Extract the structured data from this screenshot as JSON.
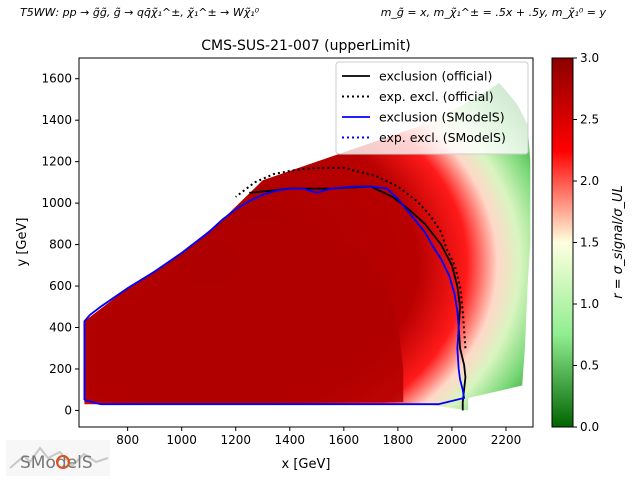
{
  "header": {
    "process": "T5WW: pp → g̃g̃, g̃ → qq̄χ̃₁^±, χ̃₁^± → Wχ̃₁⁰",
    "masses": "m_g̃ = x, m_χ̃₁^± = .5x + .5y, m_χ̃₁⁰ = y"
  },
  "logo": {
    "text": "SModelS"
  },
  "chart_data": {
    "type": "heatmap",
    "title": "CMS-SUS-21-007 (upperLimit)",
    "xlabel": "x [GeV]",
    "ylabel": "y [GeV]",
    "xlim": [
      620,
      2300
    ],
    "ylim": [
      -80,
      1700
    ],
    "xticks": [
      800,
      1000,
      1200,
      1400,
      1600,
      1800,
      2000,
      2200
    ],
    "yticks": [
      0,
      200,
      400,
      600,
      800,
      1000,
      1200,
      1400,
      1600
    ],
    "grid": false,
    "legend_position": "top-right",
    "colorbar": {
      "label": "r = σ_signal/σ_UL",
      "range": [
        0,
        3
      ],
      "ticks": [
        "0.0",
        "0.5",
        "1.0",
        "1.5",
        "2.0",
        "2.5",
        "3.0"
      ],
      "colors": [
        "#006400",
        "#90ee90",
        "#ffffe0",
        "#ff0000",
        "#8b0000"
      ]
    },
    "series": [
      {
        "name": "exclusion (official)",
        "style": "solid",
        "color": "#000000",
        "points": [
          [
            2040,
            0
          ],
          [
            2040,
            40
          ],
          [
            2045,
            100
          ],
          [
            2050,
            160
          ],
          [
            2045,
            220
          ],
          [
            2030,
            300
          ],
          [
            2025,
            400
          ],
          [
            2030,
            500
          ],
          [
            2020,
            600
          ],
          [
            2000,
            700
          ],
          [
            1960,
            800
          ],
          [
            1900,
            900
          ],
          [
            1840,
            970
          ],
          [
            1780,
            1030
          ],
          [
            1700,
            1080
          ],
          [
            1550,
            1070
          ],
          [
            1400,
            1070
          ],
          [
            1330,
            1060
          ],
          [
            1250,
            1050
          ]
        ]
      },
      {
        "name": "exp. excl. (official)",
        "style": "dotted",
        "color": "#000000",
        "points": [
          [
            2050,
            300
          ],
          [
            2040,
            480
          ],
          [
            2030,
            600
          ],
          [
            2010,
            700
          ],
          [
            1980,
            780
          ],
          [
            1960,
            860
          ],
          [
            1920,
            940
          ],
          [
            1870,
            1010
          ],
          [
            1800,
            1080
          ],
          [
            1720,
            1130
          ],
          [
            1600,
            1170
          ],
          [
            1500,
            1170
          ],
          [
            1420,
            1160
          ],
          [
            1340,
            1140
          ],
          [
            1270,
            1100
          ],
          [
            1200,
            1030
          ]
        ]
      },
      {
        "name": "exclusion (SModelS)",
        "style": "solid",
        "color": "#0000ff",
        "points": [
          [
            640,
            50
          ],
          [
            640,
            430
          ],
          [
            660,
            460
          ],
          [
            700,
            500
          ],
          [
            800,
            590
          ],
          [
            900,
            670
          ],
          [
            1000,
            760
          ],
          [
            1100,
            860
          ],
          [
            1150,
            920
          ],
          [
            1200,
            970
          ],
          [
            1250,
            1010
          ],
          [
            1300,
            1040
          ],
          [
            1350,
            1060
          ],
          [
            1400,
            1070
          ],
          [
            1450,
            1070
          ],
          [
            1500,
            1050
          ],
          [
            1550,
            1070
          ],
          [
            1600,
            1075
          ],
          [
            1650,
            1080
          ],
          [
            1700,
            1080
          ],
          [
            1760,
            1070
          ],
          [
            1800,
            1020
          ],
          [
            1850,
            940
          ],
          [
            1900,
            860
          ],
          [
            1930,
            790
          ],
          [
            1960,
            730
          ],
          [
            1990,
            650
          ],
          [
            2010,
            560
          ],
          [
            2020,
            480
          ],
          [
            2025,
            400
          ],
          [
            2020,
            300
          ],
          [
            2025,
            200
          ],
          [
            2030,
            150
          ],
          [
            2040,
            100
          ],
          [
            2045,
            60
          ],
          [
            1950,
            30
          ],
          [
            1750,
            30
          ],
          [
            1400,
            30
          ],
          [
            1200,
            30
          ],
          [
            1000,
            30
          ],
          [
            700,
            30
          ],
          [
            640,
            50
          ]
        ]
      },
      {
        "name": "exp. excl. (SModelS)",
        "style": "dotted",
        "color": "#0000ff",
        "points": []
      }
    ]
  }
}
